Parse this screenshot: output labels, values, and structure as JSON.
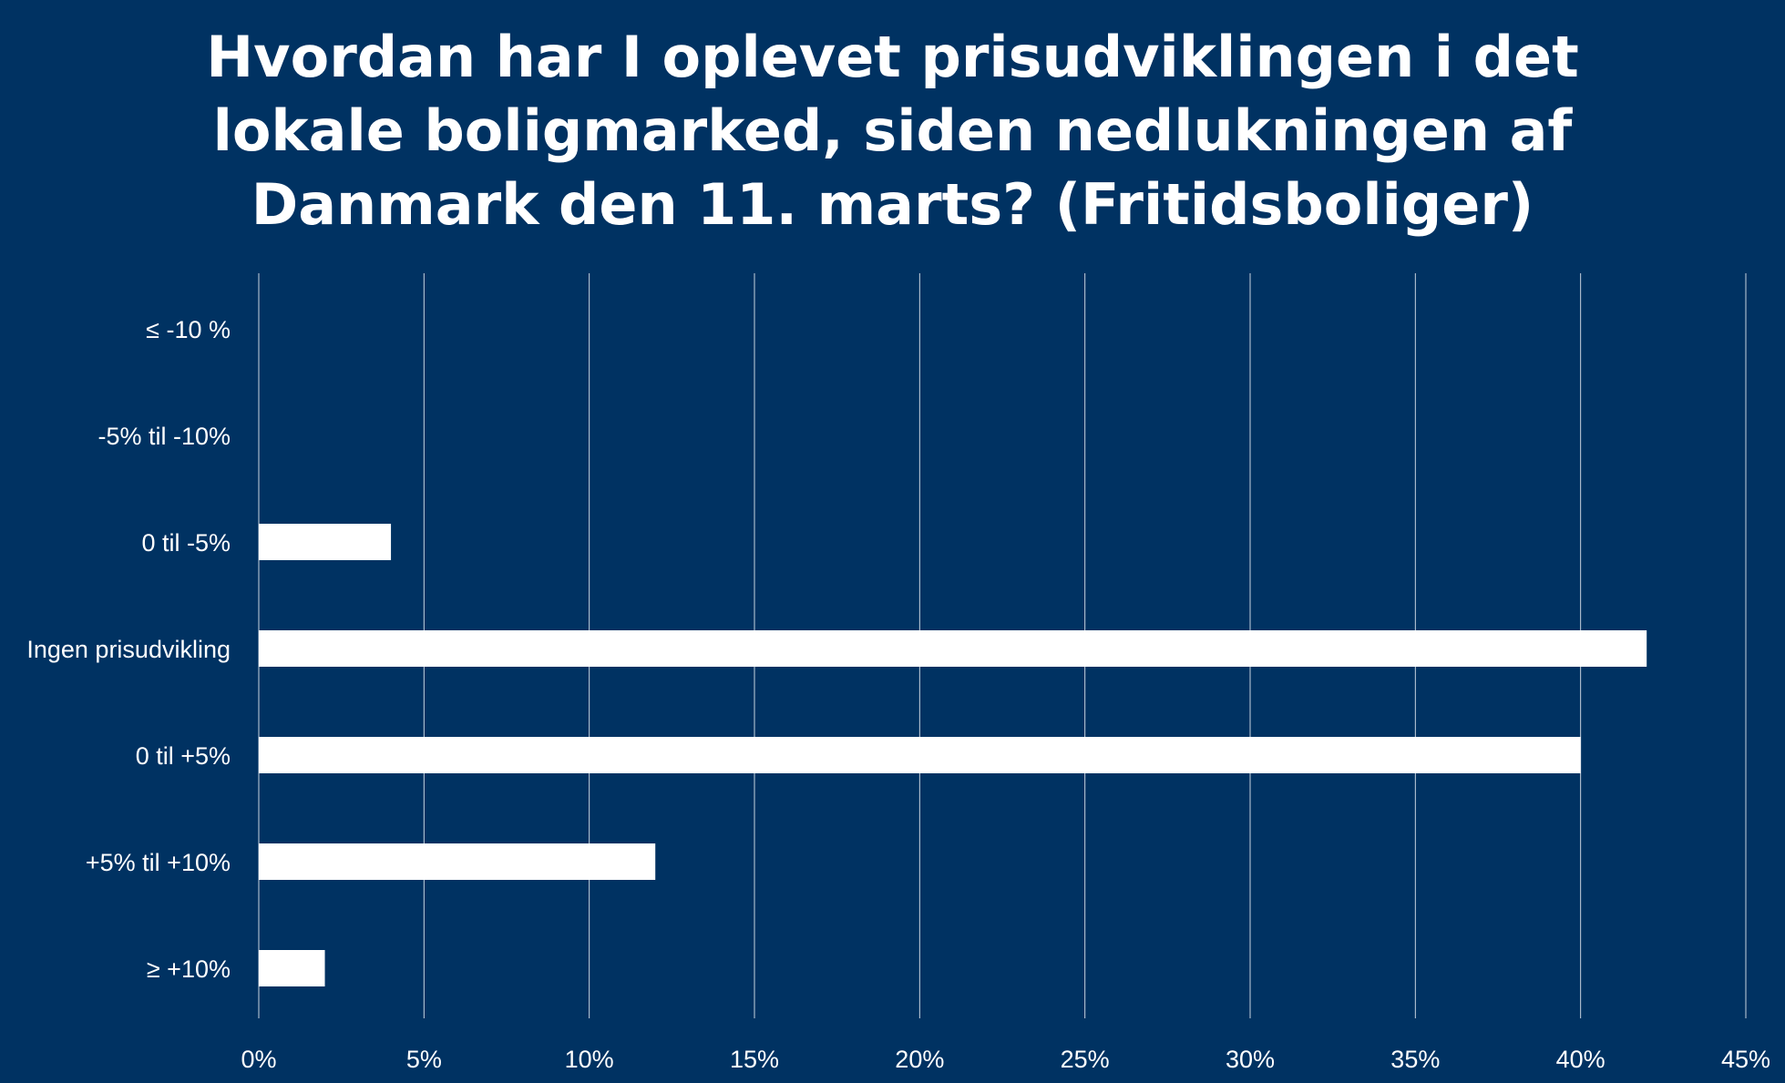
{
  "chart_data": {
    "type": "bar",
    "orientation": "horizontal",
    "title_lines": [
      "Hvordan har I oplevet prisudviklingen i det",
      "lokale boligmarked, siden nedlukningen af",
      "Danmark den 11. marts? (Fritidsboliger)"
    ],
    "categories": [
      "≤ -10 %",
      "-5% til -10%",
      "0 til -5%",
      "Ingen prisudvikling",
      "0 til +5%",
      "+5% til +10%",
      "≥ +10%"
    ],
    "values": [
      0,
      0,
      4,
      42,
      40,
      12,
      2
    ],
    "xlim": [
      0,
      45
    ],
    "x_ticks": [
      0,
      5,
      10,
      15,
      20,
      25,
      30,
      35,
      40,
      45
    ],
    "x_tick_labels": [
      "0%",
      "5%",
      "10%",
      "15%",
      "20%",
      "25%",
      "30%",
      "35%",
      "40%",
      "45%"
    ],
    "xlabel": "",
    "ylabel": "",
    "grid": "vertical",
    "legend": "none",
    "colors": {
      "background": "#003262",
      "bar": "#ffffff",
      "text": "#ffffff",
      "gridline": "#c9d3df"
    }
  }
}
